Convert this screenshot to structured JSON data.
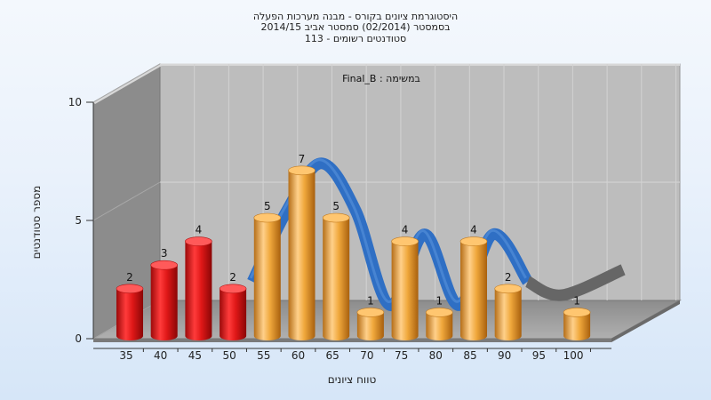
{
  "title_lines": [
    "היסטוגרמת ציונים בקורס - מבנה מערכות הפעלה",
    "בסמסטר (02/2014) סמסטר אביב 2014/15",
    "סטודנטים רשומים - 113"
  ],
  "chart_data": {
    "type": "bar",
    "categories": [
      "35",
      "40",
      "45",
      "50",
      "55",
      "60",
      "65",
      "70",
      "75",
      "80",
      "85",
      "90",
      "95",
      "100"
    ],
    "values": [
      2,
      3,
      4,
      2,
      5,
      7,
      5,
      1,
      4,
      1,
      4,
      2,
      0,
      1
    ],
    "subtitle": "Final_B : במשימה",
    "xlabel": "טווח ציונים",
    "ylabel": "מספר סטודנטים",
    "ylim": [
      0,
      10
    ],
    "yticks": [
      0,
      5,
      10
    ],
    "grid": true,
    "colors": {
      "fail": "#e41d1d",
      "pass": "#f0a83c",
      "curve": "#2f6fc4",
      "curve_tail": "#666666",
      "back_wall": "#bcbcbc",
      "side_wall": "#8a8a8a",
      "floor": "#9a9a9a"
    },
    "fail_categories": [
      "35",
      "40",
      "45",
      "50"
    ]
  }
}
